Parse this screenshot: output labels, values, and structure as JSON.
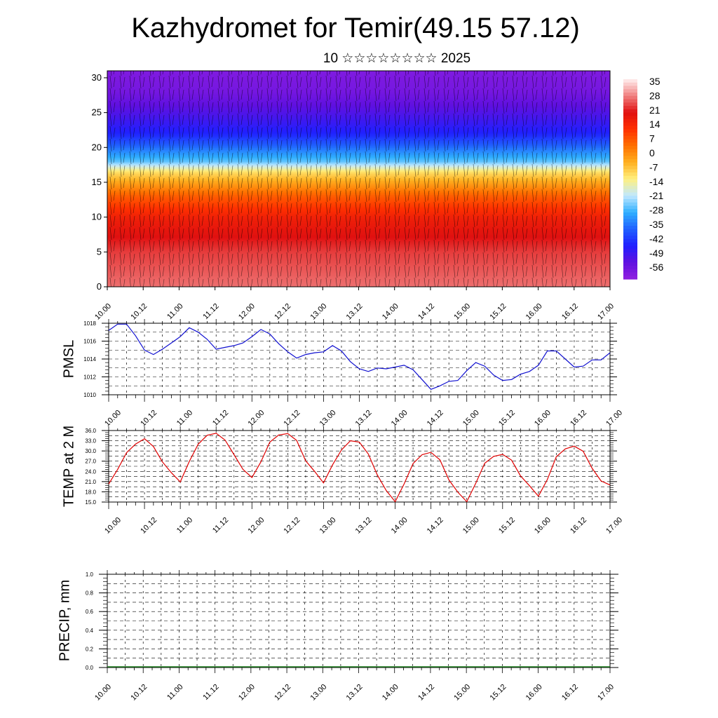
{
  "header": {
    "title": "Kazhydromet for Temir(49.15 57.12)",
    "subtitle": "10 ☆☆☆☆☆☆☆☆ 2025"
  },
  "colors": {
    "pmsl_line": "#1010d0",
    "temp_line": "#e00000",
    "precip_line": "#1a7a1a",
    "colormap": [
      "#fff0f0",
      "#f08080",
      "#e01010",
      "#ff3000",
      "#ff7000",
      "#ffb020",
      "#fff080",
      "#c0e8ff",
      "#30b0ff",
      "#2060ff",
      "#2020ff",
      "#6010e0",
      "#9020e0"
    ]
  },
  "chart_data": [
    {
      "type": "heatmap",
      "name": "vertical-section",
      "x_tick_labels": [
        "10.00",
        "10.12",
        "11.00",
        "11.12",
        "12.00",
        "12.12",
        "13.00",
        "13.12",
        "14.00",
        "14.12",
        "15.00",
        "15.12",
        "16.00",
        "16.12",
        "17.00"
      ],
      "y_ticks": [
        0,
        5,
        10,
        15,
        20,
        25,
        30
      ],
      "ylim": [
        0,
        31
      ],
      "colorbar_labels": [
        "35",
        "28",
        "21",
        "14",
        "7",
        "0",
        "-7",
        "-14",
        "-21",
        "-28",
        "-35",
        "-42",
        "-49",
        "-56"
      ],
      "colorbar_range": [
        -63,
        42
      ],
      "value_by_level": [
        [
          0,
          32
        ],
        [
          5,
          28
        ],
        [
          10,
          20
        ],
        [
          13,
          10
        ],
        [
          15,
          0
        ],
        [
          16.5,
          -8
        ],
        [
          18,
          -25
        ],
        [
          20,
          -35
        ],
        [
          22,
          -45
        ],
        [
          25,
          -52
        ],
        [
          28,
          -58
        ],
        [
          31,
          -60
        ]
      ]
    },
    {
      "type": "line",
      "name": "pmsl",
      "ylabel": "PMSL",
      "ylim": [
        1010,
        1018
      ],
      "y_ticks": [
        "1010",
        "1012",
        "1014",
        "1016",
        "1018"
      ],
      "x_tick_labels": [
        "10.00",
        "10.12",
        "11.00",
        "11.12",
        "12.00",
        "12.12",
        "13.00",
        "13.12",
        "14.00",
        "14.12",
        "15.00",
        "15.12",
        "16.00",
        "16.12",
        "17.00"
      ],
      "x_range": [
        0,
        168
      ],
      "x": [
        0,
        3,
        6,
        9,
        12,
        15,
        18,
        21,
        24,
        27,
        30,
        33,
        36,
        39,
        42,
        45,
        48,
        51,
        54,
        57,
        60,
        63,
        66,
        69,
        72,
        75,
        78,
        81,
        84,
        87,
        90,
        93,
        96,
        99,
        102,
        105,
        108,
        111,
        114,
        117,
        120,
        123,
        126,
        129,
        132,
        135,
        138,
        141,
        144,
        147,
        150,
        153,
        156,
        159,
        162,
        165,
        168
      ],
      "values": [
        1017.2,
        1017.9,
        1017.9,
        1016.6,
        1015.0,
        1014.5,
        1015.1,
        1015.8,
        1016.5,
        1017.5,
        1017.0,
        1016.2,
        1015.1,
        1015.3,
        1015.5,
        1015.8,
        1016.5,
        1017.3,
        1016.8,
        1015.7,
        1014.8,
        1014.1,
        1014.5,
        1014.7,
        1014.8,
        1015.5,
        1014.9,
        1013.7,
        1012.9,
        1012.6,
        1013.0,
        1012.9,
        1013.1,
        1013.3,
        1012.8,
        1011.7,
        1010.6,
        1011.0,
        1011.5,
        1011.6,
        1012.7,
        1013.6,
        1013.2,
        1012.2,
        1011.6,
        1011.7,
        1012.3,
        1012.6,
        1013.3,
        1014.9,
        1014.9,
        1014.0,
        1013.1,
        1013.2,
        1013.9,
        1013.9,
        1014.7
      ]
    },
    {
      "type": "line",
      "name": "temp-2m",
      "ylabel": "TEMP at 2 M",
      "ylim": [
        15,
        36
      ],
      "y_ticks": [
        "15.0",
        "18.0",
        "21.0",
        "24.0",
        "27.0",
        "30.0",
        "33.0",
        "36.0"
      ],
      "x_tick_labels": [
        "10.00",
        "10.12",
        "11.00",
        "11.12",
        "12.00",
        "12.12",
        "13.00",
        "13.12",
        "14.00",
        "14.12",
        "15.00",
        "15.12",
        "16.00",
        "16.12",
        "17.00"
      ],
      "x_range": [
        0,
        168
      ],
      "x": [
        0,
        3,
        6,
        9,
        12,
        15,
        18,
        21,
        24,
        27,
        30,
        33,
        36,
        39,
        42,
        45,
        48,
        51,
        54,
        57,
        60,
        63,
        66,
        69,
        72,
        75,
        78,
        81,
        84,
        87,
        90,
        93,
        96,
        99,
        102,
        105,
        108,
        111,
        114,
        117,
        120,
        123,
        126,
        129,
        132,
        135,
        138,
        141,
        144,
        147,
        150,
        153,
        156,
        159,
        162,
        165,
        168
      ],
      "values": [
        20.3,
        24.6,
        29.5,
        32.0,
        33.6,
        31.3,
        26.8,
        23.6,
        20.9,
        26.9,
        32.0,
        34.6,
        35.2,
        33.2,
        28.9,
        24.6,
        22.2,
        26.8,
        32.6,
        34.7,
        35.1,
        33.1,
        27.1,
        24.0,
        20.6,
        25.9,
        30.3,
        33.0,
        32.6,
        29.1,
        23.0,
        18.4,
        15.1,
        20.3,
        26.3,
        28.9,
        29.6,
        27.4,
        21.5,
        17.9,
        15.1,
        20.5,
        26.4,
        28.4,
        29.0,
        27.3,
        22.7,
        19.8,
        16.7,
        21.6,
        28.3,
        30.6,
        31.4,
        29.9,
        24.9,
        21.2,
        20.0
      ]
    },
    {
      "type": "line",
      "name": "precip",
      "ylabel": "PRECIP, mm",
      "ylim": [
        0,
        1
      ],
      "y_ticks": [
        "0.0",
        "0.2",
        "0.4",
        "0.6",
        "0.8",
        "1.0"
      ],
      "x_tick_labels": [
        "10.00",
        "10.12",
        "11.00",
        "11.12",
        "12.00",
        "12.12",
        "13.00",
        "13.12",
        "14.00",
        "14.12",
        "15.00",
        "15.12",
        "16.00",
        "16.12",
        "17.00"
      ],
      "x_range": [
        0,
        168
      ],
      "x": [
        0,
        168
      ],
      "values": [
        0,
        0
      ]
    }
  ]
}
